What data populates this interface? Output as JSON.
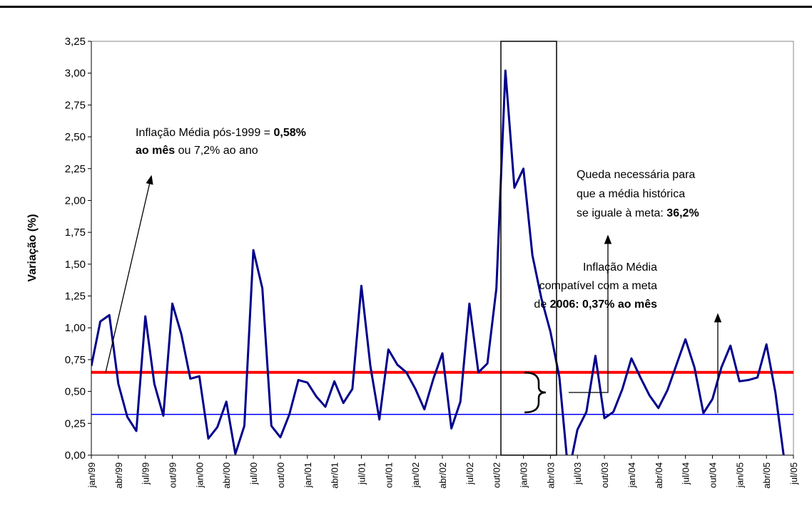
{
  "chart_data": {
    "type": "line",
    "y_label": "Variação (%)",
    "categories": [
      "jan/99",
      null,
      null,
      "abr/99",
      null,
      null,
      "jul/99",
      null,
      null,
      "out/99",
      null,
      null,
      "jan/00",
      null,
      null,
      "abr/00",
      null,
      null,
      "jul/00",
      null,
      null,
      "out/00",
      null,
      null,
      "jan/01",
      null,
      null,
      "abr/01",
      null,
      null,
      "jul/01",
      null,
      null,
      "out/01",
      null,
      null,
      "jan/02",
      null,
      null,
      "abr/02",
      null,
      null,
      "jul/02",
      null,
      null,
      "out/02",
      null,
      null,
      "jan/03",
      null,
      null,
      "abr/03",
      null,
      null,
      "jul/03",
      null,
      null,
      "out/03",
      null,
      null,
      "jan/04",
      null,
      null,
      "abr/04",
      null,
      null,
      "jul/04",
      null,
      null,
      "out/04",
      null,
      null,
      "jan/05",
      null,
      null,
      "abr/05",
      null,
      null,
      "jul/05"
    ],
    "series": [
      {
        "color": "#00008b",
        "values": [
          0.7,
          1.05,
          1.1,
          0.56,
          0.3,
          0.19,
          1.09,
          0.56,
          0.31,
          1.19,
          0.95,
          0.6,
          0.62,
          0.13,
          0.22,
          0.42,
          0.01,
          0.23,
          1.61,
          1.31,
          0.23,
          0.14,
          0.32,
          0.59,
          0.57,
          0.46,
          0.38,
          0.58,
          0.41,
          0.52,
          1.33,
          0.7,
          0.28,
          0.83,
          0.71,
          0.65,
          0.52,
          0.36,
          0.6,
          0.8,
          0.21,
          0.42,
          1.19,
          0.65,
          0.72,
          1.31,
          3.02,
          2.1,
          2.25,
          1.57,
          1.23,
          0.97,
          0.61,
          -0.15,
          0.2,
          0.34,
          0.78,
          0.29,
          0.34,
          0.52,
          0.76,
          0.61,
          0.47,
          0.37,
          0.51,
          0.71,
          0.91,
          0.69,
          0.33,
          0.44,
          0.69,
          0.86,
          0.58,
          0.59,
          0.61,
          0.87,
          0.49,
          -0.05,
          null
        ]
      }
    ],
    "ref_lines": [
      {
        "value": 0.65,
        "color": "#ff0000"
      },
      {
        "value": 0.32,
        "color": "#0000ff"
      }
    ],
    "ylim": [
      0,
      3.25
    ],
    "yticks": [
      {
        "value": 0,
        "label": "0,00"
      },
      {
        "value": 0.25,
        "label": "0,25"
      },
      {
        "value": 0.5,
        "label": "0,50"
      },
      {
        "value": 0.75,
        "label": "0,75"
      },
      {
        "value": 1,
        "label": "1,00"
      },
      {
        "value": 1.25,
        "label": "1,25"
      },
      {
        "value": 1.5,
        "label": "1,50"
      },
      {
        "value": 1.75,
        "label": "1,75"
      },
      {
        "value": 2,
        "label": "2,00"
      },
      {
        "value": 2.25,
        "label": "2,25"
      },
      {
        "value": 2.5,
        "label": "2,50"
      },
      {
        "value": 2.75,
        "label": "2,75"
      },
      {
        "value": 3,
        "label": "3,00"
      },
      {
        "value": 3.25,
        "label": "3,25"
      }
    ],
    "annotations": [
      {
        "align": "start",
        "lines": [
          [
            {
              "text": "Inflação Média pós-1999 = ",
              "bold": false
            },
            {
              "text": "0,58%",
              "bold": true
            }
          ],
          [
            {
              "text": "ao mês",
              "bold": true
            },
            {
              "text": " ou 7,2% ao ano",
              "bold": false
            }
          ]
        ]
      },
      {
        "align": "start",
        "lines": [
          [
            {
              "text": "Queda necessária para",
              "bold": false
            }
          ],
          [
            {
              "text": "que a média histórica",
              "bold": false
            }
          ],
          [
            {
              "text": "se iguale à meta: ",
              "bold": false
            },
            {
              "text": "36,2%",
              "bold": true
            }
          ]
        ]
      },
      {
        "align": "end",
        "lines": [
          [
            {
              "text": "Inflação Média",
              "bold": false
            }
          ],
          [
            {
              "text": "compatível com a meta",
              "bold": false
            }
          ],
          [
            {
              "text": "de ",
              "bold": false
            },
            {
              "text": "2006: 0,37% ao mês",
              "bold": true
            }
          ]
        ]
      }
    ]
  }
}
